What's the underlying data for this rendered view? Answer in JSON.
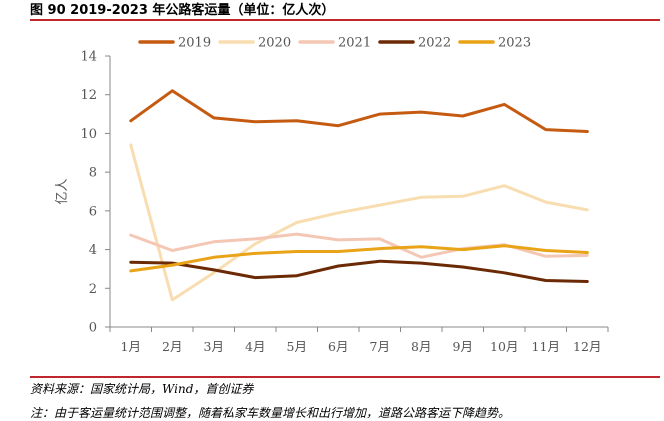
{
  "figure_title": "图 90 2019-2023 年公路客运量（单位：亿人次）",
  "source": "资料来源：国家统计局，Wind，首创证券",
  "note": "注：由于客运量统计范围调整，随着私家车数量增长和出行增加，道路公路客运下降趋势。",
  "chart_data": {
    "type": "line",
    "title": "",
    "xlabel": "",
    "ylabel": "亿人",
    "ylim": [
      0,
      14
    ],
    "yticks": [
      0,
      2,
      4,
      6,
      8,
      10,
      12,
      14
    ],
    "grid": false,
    "legend_position": "top",
    "categories": [
      "1月",
      "2月",
      "3月",
      "4月",
      "5月",
      "6月",
      "7月",
      "8月",
      "9月",
      "10月",
      "11月",
      "12月"
    ],
    "series": [
      {
        "name": "2019",
        "color": "#c55a11",
        "values": [
          10.65,
          12.2,
          10.8,
          10.6,
          10.65,
          10.4,
          11.0,
          11.1,
          10.9,
          11.5,
          10.2,
          10.1
        ]
      },
      {
        "name": "2020",
        "color": "#f8ddb0",
        "values": [
          9.4,
          1.4,
          2.8,
          4.3,
          5.4,
          5.9,
          6.3,
          6.7,
          6.75,
          7.3,
          6.45,
          6.05
        ]
      },
      {
        "name": "2021",
        "color": "#f4c7b4",
        "values": [
          4.75,
          3.95,
          4.4,
          4.55,
          4.8,
          4.5,
          4.55,
          3.6,
          4.05,
          4.25,
          3.65,
          3.7
        ]
      },
      {
        "name": "2022",
        "color": "#6b2a05",
        "values": [
          3.35,
          3.3,
          2.95,
          2.55,
          2.65,
          3.15,
          3.4,
          3.3,
          3.1,
          2.8,
          2.4,
          2.35
        ]
      },
      {
        "name": "2023",
        "color": "#e8a317",
        "values": [
          2.9,
          3.2,
          3.6,
          3.8,
          3.9,
          3.9,
          4.05,
          4.15,
          4.0,
          4.2,
          3.95,
          3.85
        ]
      }
    ]
  }
}
